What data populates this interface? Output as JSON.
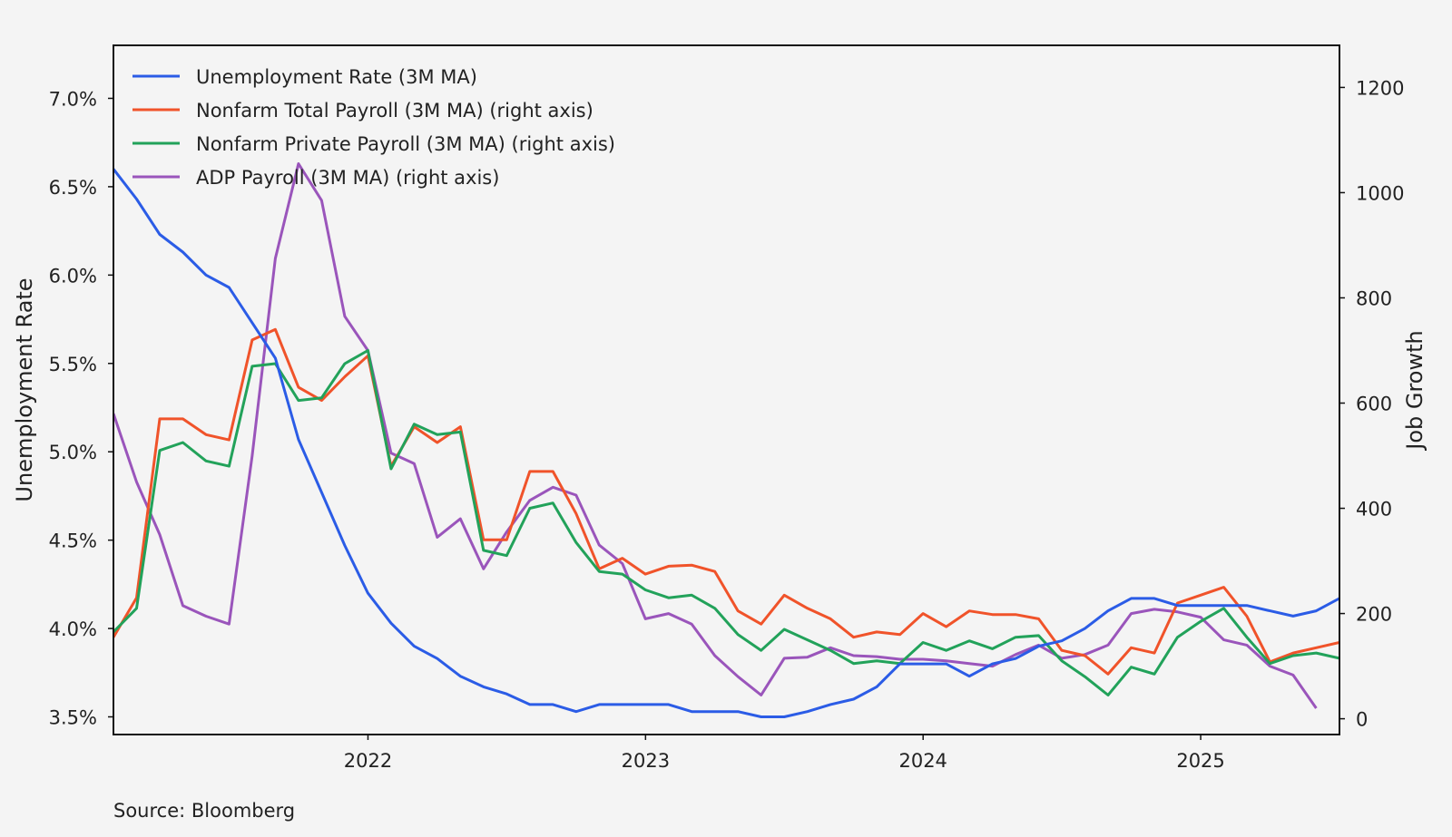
{
  "source": "Source: Bloomberg",
  "chart_data": {
    "type": "line",
    "y_left_label": "Unemployment Rate",
    "y_right_label": "Job Growth",
    "y_left_lim": [
      3.4,
      7.3
    ],
    "y_right_lim": [
      -30,
      1280
    ],
    "x_start": 2021.083,
    "x_end": 2025.5,
    "x_ticks": [
      2022,
      2023,
      2024,
      2025
    ],
    "x_tick_labels": [
      "2022",
      "2023",
      "2024",
      "2025"
    ],
    "y_left_ticks": [
      3.5,
      4.0,
      4.5,
      5.0,
      5.5,
      6.0,
      6.5,
      7.0
    ],
    "y_left_tick_labels": [
      "3.5%",
      "4.0%",
      "4.5%",
      "5.0%",
      "5.5%",
      "6.0%",
      "6.5%",
      "7.0%"
    ],
    "y_right_ticks": [
      0,
      200,
      400,
      600,
      800,
      1000,
      1200
    ],
    "y_right_tick_labels": [
      "0",
      "200",
      "400",
      "600",
      "800",
      "1000",
      "1200"
    ],
    "legend_position": "top-left",
    "series": [
      {
        "name": "Unemployment Rate (3M MA)",
        "axis": "left",
        "color": "#2b5ce6",
        "values": [
          6.6,
          6.43,
          6.23,
          6.13,
          6.0,
          5.93,
          5.73,
          5.53,
          5.07,
          4.77,
          4.47,
          4.2,
          4.03,
          3.9,
          3.83,
          3.73,
          3.67,
          3.63,
          3.57,
          3.57,
          3.53,
          3.57,
          3.57,
          3.57,
          3.57,
          3.53,
          3.53,
          3.53,
          3.5,
          3.5,
          3.53,
          3.57,
          3.6,
          3.67,
          3.8,
          3.8,
          3.8,
          3.73,
          3.8,
          3.83,
          3.9,
          3.93,
          4.0,
          4.1,
          4.17,
          4.17,
          4.13,
          4.13,
          4.13,
          4.13,
          4.1,
          4.07,
          4.1,
          4.17,
          4.2,
          4.17
        ]
      },
      {
        "name": "Nonfarm Total Payroll (3M MA) (right axis)",
        "axis": "right",
        "color": "#f0532a",
        "values": [
          155,
          230,
          570,
          570,
          540,
          530,
          720,
          740,
          630,
          605,
          650,
          690,
          480,
          555,
          525,
          555,
          340,
          340,
          470,
          470,
          390,
          285,
          305,
          275,
          290,
          292,
          280,
          205,
          180,
          235,
          210,
          190,
          155,
          165,
          160,
          200,
          175,
          205,
          198,
          198,
          190,
          130,
          120,
          85,
          135,
          125,
          220,
          235,
          250,
          195,
          108,
          125,
          135,
          145,
          150
        ]
      },
      {
        "name": "Nonfarm Private Payroll (3M MA) (right axis)",
        "axis": "right",
        "color": "#22a25a",
        "values": [
          165,
          210,
          510,
          525,
          490,
          480,
          670,
          675,
          605,
          610,
          675,
          700,
          475,
          560,
          540,
          545,
          320,
          310,
          400,
          410,
          335,
          280,
          275,
          245,
          230,
          235,
          210,
          160,
          130,
          170,
          150,
          130,
          105,
          110,
          105,
          145,
          130,
          148,
          133,
          155,
          158,
          110,
          80,
          45,
          98,
          85,
          155,
          185,
          210,
          155,
          105,
          120,
          125,
          115
        ]
      },
      {
        "name": "ADP Payroll (3M MA) (right axis)",
        "axis": "right",
        "color": "#9a55bb",
        "values": [
          580,
          450,
          350,
          215,
          195,
          180,
          500,
          875,
          1055,
          985,
          765,
          700,
          505,
          485,
          345,
          380,
          285,
          355,
          415,
          440,
          425,
          330,
          295,
          190,
          200,
          180,
          120,
          80,
          45,
          115,
          117,
          135,
          120,
          118,
          113,
          113,
          110,
          105,
          100,
          122,
          140,
          115,
          122,
          140,
          200,
          208,
          203,
          193,
          150,
          140,
          100,
          83,
          20
        ]
      }
    ]
  }
}
